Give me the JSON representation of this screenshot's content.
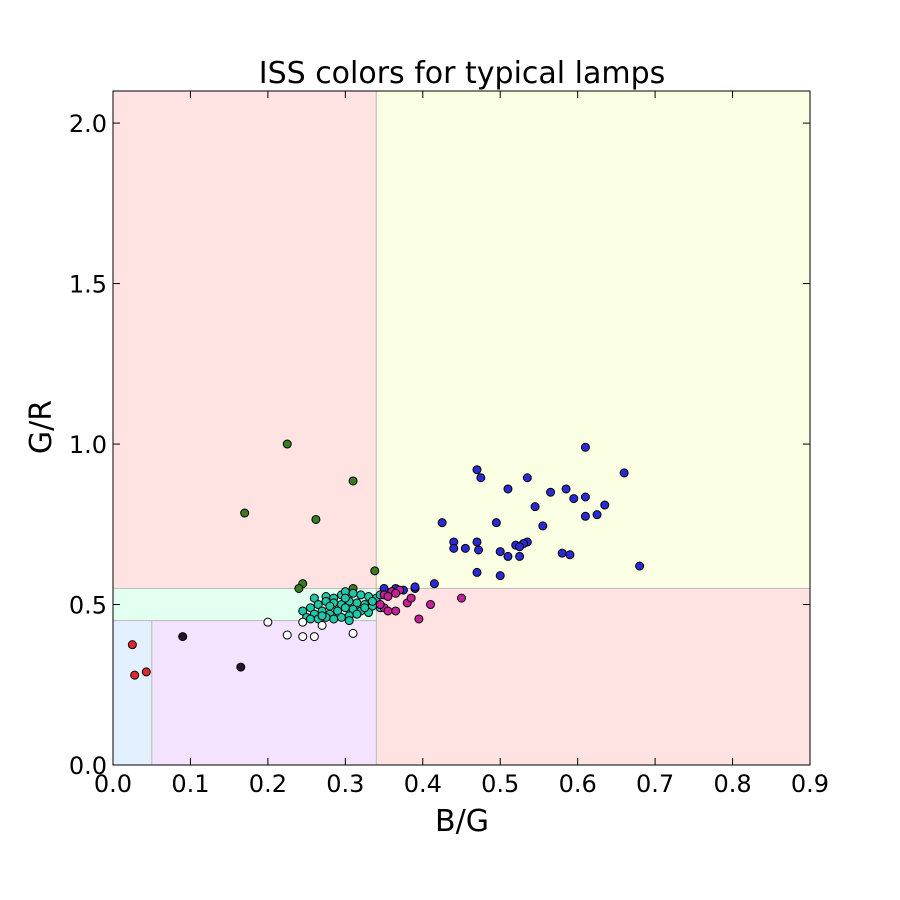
{
  "chart_data": {
    "type": "scatter",
    "title": "ISS colors for typical lamps",
    "xlabel": "B/G",
    "ylabel": "G/R",
    "xlim": [
      0,
      0.9
    ],
    "ylim": [
      0,
      2.1
    ],
    "xticks": [
      "0.0",
      "0.1",
      "0.2",
      "0.3",
      "0.4",
      "0.5",
      "0.6",
      "0.7",
      "0.8",
      "0.9"
    ],
    "yticks": [
      "0.0",
      "0.5",
      "1.0",
      "1.5",
      "2.0"
    ],
    "grid": false,
    "regions": [
      {
        "x": [
          0,
          0.34
        ],
        "y": [
          0.55,
          2.1
        ],
        "color": "#ffe3e3"
      },
      {
        "x": [
          0.34,
          0.9
        ],
        "y": [
          0.55,
          2.1
        ],
        "color": "#faffe3"
      },
      {
        "x": [
          0.34,
          0.9
        ],
        "y": [
          0,
          0.55
        ],
        "color": "#ffe3e3"
      },
      {
        "x": [
          0,
          0.34
        ],
        "y": [
          0.45,
          0.55
        ],
        "color": "#e3fff0"
      },
      {
        "x": [
          0.05,
          0.34
        ],
        "y": [
          0,
          0.45
        ],
        "color": "#f3e3ff"
      },
      {
        "x": [
          0,
          0.05
        ],
        "y": [
          0,
          0.45
        ],
        "color": "#e3f0ff"
      }
    ],
    "series": [
      {
        "color": "#2a2ad4",
        "points": [
          [
            0.61,
            0.99
          ],
          [
            0.47,
            0.92
          ],
          [
            0.66,
            0.91
          ],
          [
            0.475,
            0.895
          ],
          [
            0.535,
            0.895
          ],
          [
            0.585,
            0.86
          ],
          [
            0.51,
            0.86
          ],
          [
            0.565,
            0.85
          ],
          [
            0.61,
            0.835
          ],
          [
            0.595,
            0.83
          ],
          [
            0.635,
            0.81
          ],
          [
            0.545,
            0.805
          ],
          [
            0.625,
            0.78
          ],
          [
            0.61,
            0.775
          ],
          [
            0.495,
            0.755
          ],
          [
            0.425,
            0.755
          ],
          [
            0.555,
            0.745
          ],
          [
            0.44,
            0.695
          ],
          [
            0.47,
            0.695
          ],
          [
            0.535,
            0.695
          ],
          [
            0.53,
            0.69
          ],
          [
            0.52,
            0.685
          ],
          [
            0.44,
            0.675
          ],
          [
            0.455,
            0.675
          ],
          [
            0.525,
            0.68
          ],
          [
            0.472,
            0.67
          ],
          [
            0.5,
            0.665
          ],
          [
            0.58,
            0.66
          ],
          [
            0.59,
            0.655
          ],
          [
            0.51,
            0.65
          ],
          [
            0.525,
            0.65
          ],
          [
            0.68,
            0.62
          ],
          [
            0.47,
            0.6
          ],
          [
            0.5,
            0.59
          ],
          [
            0.415,
            0.565
          ],
          [
            0.39,
            0.55
          ],
          [
            0.35,
            0.55
          ],
          [
            0.365,
            0.55
          ],
          [
            0.375,
            0.545
          ],
          [
            0.39,
            0.555
          ]
        ]
      },
      {
        "color": "#3a7d1c",
        "points": [
          [
            0.225,
            1.0
          ],
          [
            0.31,
            0.885
          ],
          [
            0.17,
            0.785
          ],
          [
            0.262,
            0.765
          ],
          [
            0.338,
            0.605
          ],
          [
            0.245,
            0.565
          ],
          [
            0.24,
            0.55
          ],
          [
            0.31,
            0.55
          ]
        ]
      },
      {
        "color": "#1ec8a8",
        "points": [
          [
            0.26,
            0.52
          ],
          [
            0.275,
            0.525
          ],
          [
            0.285,
            0.52
          ],
          [
            0.295,
            0.53
          ],
          [
            0.3,
            0.54
          ],
          [
            0.31,
            0.535
          ],
          [
            0.32,
            0.53
          ],
          [
            0.33,
            0.525
          ],
          [
            0.34,
            0.52
          ],
          [
            0.245,
            0.48
          ],
          [
            0.255,
            0.49
          ],
          [
            0.265,
            0.5
          ],
          [
            0.275,
            0.51
          ],
          [
            0.285,
            0.505
          ],
          [
            0.295,
            0.5
          ],
          [
            0.305,
            0.51
          ],
          [
            0.315,
            0.505
          ],
          [
            0.325,
            0.5
          ],
          [
            0.335,
            0.495
          ],
          [
            0.345,
            0.49
          ],
          [
            0.25,
            0.46
          ],
          [
            0.26,
            0.47
          ],
          [
            0.27,
            0.48
          ],
          [
            0.28,
            0.47
          ],
          [
            0.29,
            0.48
          ],
          [
            0.3,
            0.49
          ],
          [
            0.31,
            0.485
          ],
          [
            0.32,
            0.48
          ],
          [
            0.33,
            0.475
          ],
          [
            0.255,
            0.455
          ],
          [
            0.265,
            0.455
          ],
          [
            0.275,
            0.46
          ],
          [
            0.285,
            0.455
          ],
          [
            0.295,
            0.46
          ],
          [
            0.305,
            0.465
          ],
          [
            0.315,
            0.47
          ],
          [
            0.325,
            0.49
          ],
          [
            0.335,
            0.51
          ],
          [
            0.345,
            0.53
          ],
          [
            0.305,
            0.45
          ],
          [
            0.28,
            0.495
          ],
          [
            0.27,
            0.465
          ],
          [
            0.3,
            0.52
          ]
        ]
      },
      {
        "color": "#c8209a",
        "points": [
          [
            0.35,
            0.53
          ],
          [
            0.36,
            0.54
          ],
          [
            0.37,
            0.545
          ],
          [
            0.355,
            0.525
          ],
          [
            0.365,
            0.535
          ],
          [
            0.35,
            0.49
          ],
          [
            0.355,
            0.48
          ],
          [
            0.365,
            0.48
          ],
          [
            0.38,
            0.505
          ],
          [
            0.385,
            0.52
          ],
          [
            0.41,
            0.5
          ],
          [
            0.45,
            0.52
          ],
          [
            0.395,
            0.455
          ],
          [
            0.345,
            0.5
          ]
        ]
      },
      {
        "color": "#ffffff",
        "points": [
          [
            0.2,
            0.445
          ],
          [
            0.245,
            0.445
          ],
          [
            0.225,
            0.405
          ],
          [
            0.245,
            0.4
          ],
          [
            0.26,
            0.4
          ],
          [
            0.31,
            0.41
          ],
          [
            0.27,
            0.435
          ]
        ]
      },
      {
        "color": "#24142e",
        "points": [
          [
            0.09,
            0.4
          ],
          [
            0.165,
            0.305
          ]
        ]
      },
      {
        "color": "#e02830",
        "points": [
          [
            0.025,
            0.375
          ],
          [
            0.028,
            0.28
          ],
          [
            0.043,
            0.29
          ]
        ]
      }
    ]
  }
}
